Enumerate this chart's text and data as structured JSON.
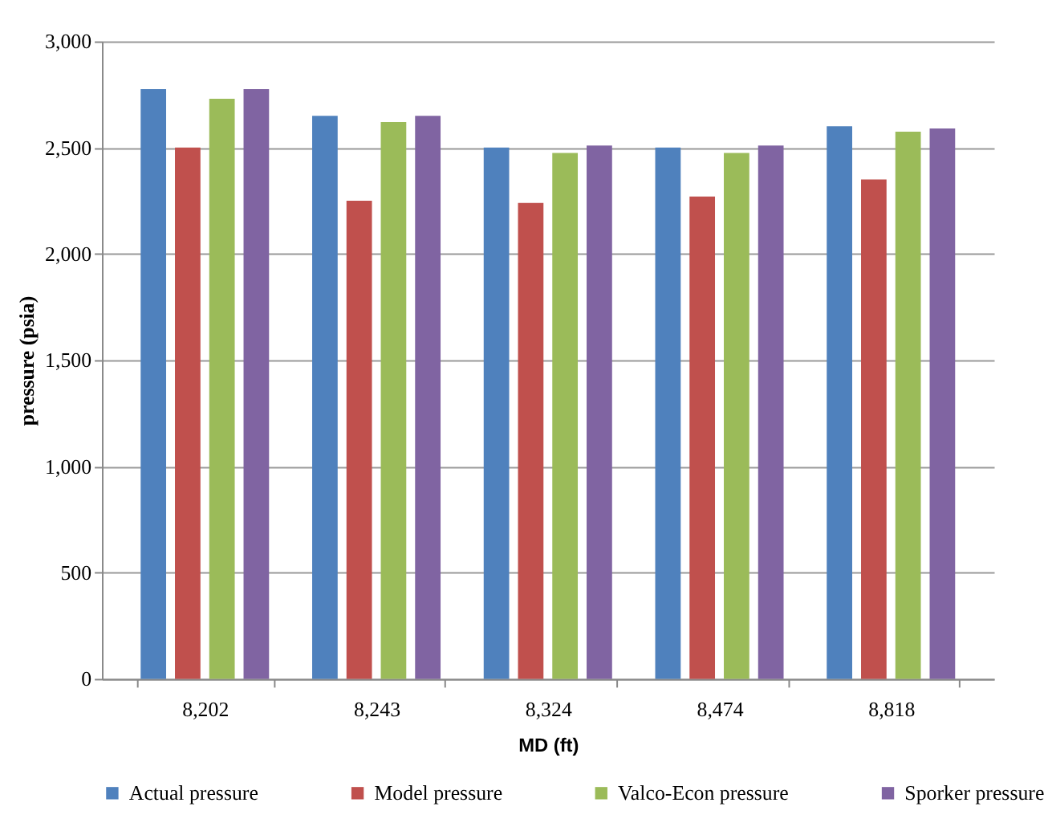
{
  "chart_data": {
    "type": "bar",
    "xlabel": "MD (ft)",
    "ylabel": "pressure (psia)",
    "categories": [
      "8,202",
      "8,243",
      "8,324",
      "8,474",
      "8,818"
    ],
    "series": [
      {
        "name": "Actual pressure",
        "color": "#4f81bd",
        "values": [
          2775,
          2650,
          2500,
          2500,
          2600
        ]
      },
      {
        "name": "Model pressure",
        "color": "#c0504d",
        "values": [
          2500,
          2250,
          2240,
          2270,
          2350
        ]
      },
      {
        "name": "Valco-Econ pressure",
        "color": "#9bbb59",
        "values": [
          2730,
          2620,
          2475,
          2475,
          2575
        ]
      },
      {
        "name": "Sporker pressure",
        "color": "#8064a2",
        "values": [
          2775,
          2650,
          2510,
          2510,
          2590
        ]
      }
    ],
    "ylim": [
      0,
      3000
    ],
    "yticks": [
      {
        "value": 0,
        "label": "0"
      },
      {
        "value": 500,
        "label": "500"
      },
      {
        "value": 1000,
        "label": "1,000"
      },
      {
        "value": 1500,
        "label": "1,500"
      },
      {
        "value": 2000,
        "label": "2,000"
      },
      {
        "value": 2500,
        "label": "2,500"
      },
      {
        "value": 3000,
        "label": "3,000"
      }
    ],
    "grid": "y",
    "legend": "bottom"
  }
}
